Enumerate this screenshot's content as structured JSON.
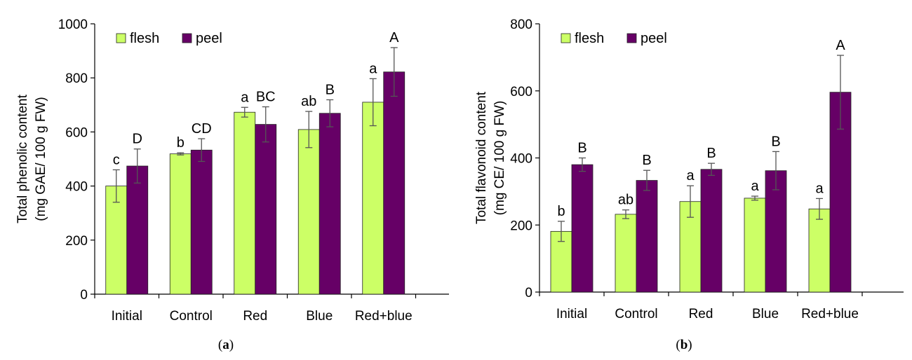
{
  "chart_data": [
    {
      "type": "bar",
      "panel_label": "a",
      "ylabel_line1": "Total phenolic content",
      "ylabel_line2": "(mg GAE/ 100 g FW)",
      "xlabel": "",
      "ylim": [
        0,
        1000
      ],
      "yticks": [
        0,
        200,
        400,
        600,
        800,
        1000
      ],
      "categories": [
        "Initial",
        "Control",
        "Red",
        "Blue",
        "Red+blue"
      ],
      "series": [
        {
          "name": "flesh",
          "color": "#ccff66",
          "values": [
            400,
            519,
            673,
            609,
            710
          ],
          "errors": [
            60,
            4,
            18,
            67,
            87
          ],
          "labels": [
            "c",
            "b",
            "a",
            "ab",
            "a"
          ]
        },
        {
          "name": "peel",
          "color": "#660066",
          "values": [
            474,
            533,
            628,
            669,
            822
          ],
          "errors": [
            63,
            42,
            65,
            50,
            90
          ],
          "labels": [
            "D",
            "CD",
            "BC",
            "B",
            "A"
          ]
        }
      ]
    },
    {
      "type": "bar",
      "panel_label": "b",
      "ylabel_line1": "Total flavonoid content",
      "ylabel_line2": "(mg CE/ 100 g FW)",
      "xlabel": "",
      "ylim": [
        0,
        800
      ],
      "yticks": [
        0,
        200,
        400,
        600,
        800
      ],
      "categories": [
        "Initial",
        "Control",
        "Red",
        "Blue",
        "Red+blue"
      ],
      "series": [
        {
          "name": "flesh",
          "color": "#ccff66",
          "values": [
            181,
            232,
            270,
            280,
            248
          ],
          "errors": [
            30,
            13,
            47,
            6,
            31
          ],
          "labels": [
            "b",
            "ab",
            "a",
            "a",
            "a"
          ]
        },
        {
          "name": "peel",
          "color": "#660066",
          "values": [
            380,
            333,
            366,
            362,
            596
          ],
          "errors": [
            20,
            30,
            18,
            57,
            110
          ],
          "labels": [
            "B",
            "B",
            "B",
            "B",
            "A"
          ]
        }
      ]
    }
  ]
}
